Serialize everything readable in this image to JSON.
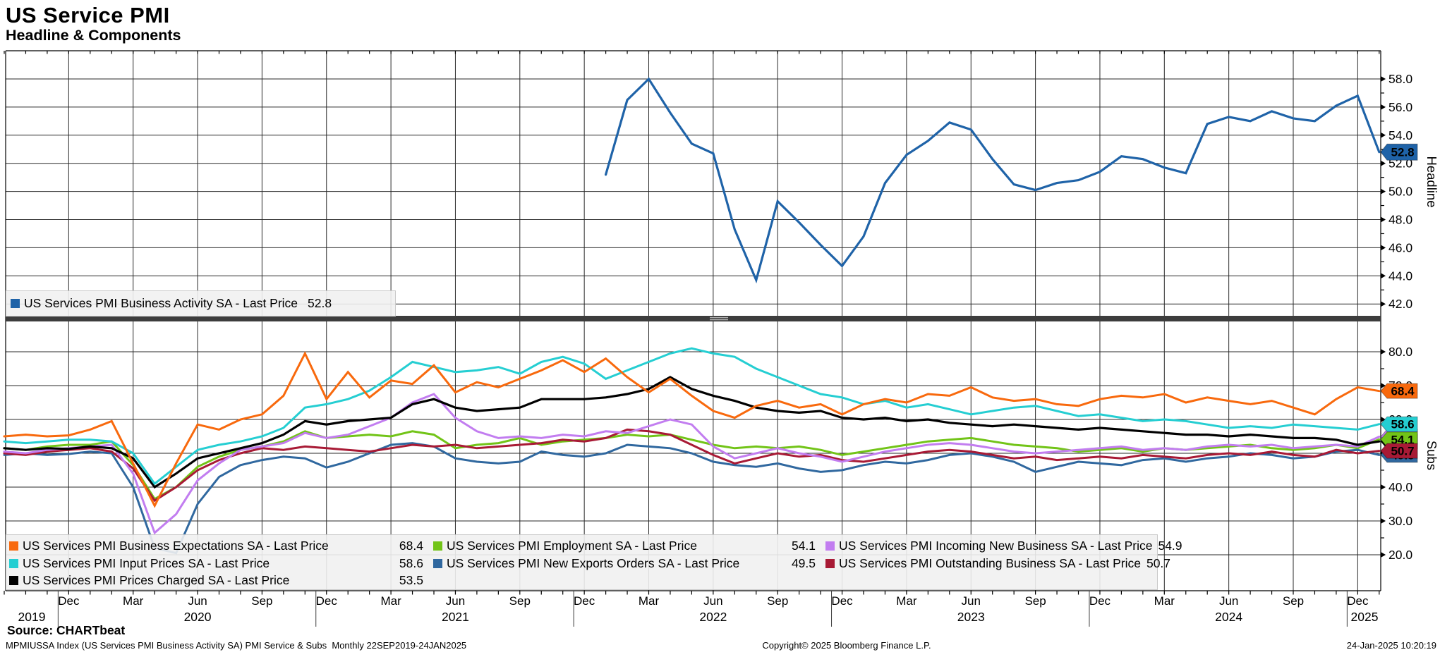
{
  "header": {
    "title": "US Service PMI",
    "subtitle": "Headline & Components"
  },
  "footer": {
    "source": "Source: CHARTbeat",
    "meta": "MPMIUSSA Index (US Services PMI Business Activity SA) PMI Service & Subs  Monthly 22SEP2019-24JAN2025",
    "copyright": "Copyright© 2025 Bloomberg Finance L.P.",
    "timestamp": "24-Jan-2025 10:20:19"
  },
  "legend_top": [
    {
      "series": "business_activity",
      "label": "US Services PMI Business Activity SA - Last Price",
      "value": "52.8",
      "color": "#1f63a8"
    }
  ],
  "legend_bottom": {
    "columns": [
      [
        {
          "series": "business_expectations",
          "label": "US Services PMI Business Expectations SA - Last Price",
          "value": "68.4",
          "color": "#f8690d"
        },
        {
          "series": "input_prices",
          "label": "US Services PMI Input Prices SA - Last Price",
          "value": "58.6",
          "color": "#25ced2"
        },
        {
          "series": "prices_charged",
          "label": "US Services PMI Prices Charged SA - Last Price",
          "value": "53.5",
          "color": "#000000"
        }
      ],
      [
        {
          "series": "employment",
          "label": "US Services PMI Employment SA - Last Price",
          "value": "54.1",
          "color": "#72c418"
        },
        {
          "series": "new_exports_orders",
          "label": "US Services PMI New Exports Orders SA - Last Price",
          "value": "49.5",
          "color": "#30689f"
        }
      ],
      [
        {
          "series": "incoming_new_business",
          "label": "US Services PMI Incoming New Business SA - Last Price",
          "value": "54.9",
          "color": "#c27df0"
        },
        {
          "series": "outstanding_business",
          "label": "US Services PMI Outstanding Business SA - Last Price",
          "value": "50.7",
          "color": "#a81a35"
        }
      ]
    ]
  },
  "x_axis": {
    "tick_labels": [
      "Dec",
      "Mar",
      "Jun",
      "Sep",
      "Dec",
      "Mar",
      "Jun",
      "Sep",
      "Dec",
      "Mar",
      "Jun",
      "Sep",
      "Dec",
      "Mar",
      "Jun",
      "Sep",
      "Dec",
      "Mar",
      "Jun",
      "Sep",
      "Dec"
    ],
    "tick_month_indices": [
      3,
      6,
      9,
      12,
      15,
      18,
      21,
      24,
      27,
      30,
      33,
      36,
      39,
      42,
      45,
      48,
      51,
      54,
      57,
      60,
      63
    ],
    "year_labels": [
      "2019",
      "2020",
      "2021",
      "2022",
      "2023",
      "2024",
      "2025"
    ]
  },
  "chart_data": {
    "type": "line",
    "title": "US Service PMI",
    "subtitle": "Headline & Components",
    "frequency": "Monthly",
    "x_range": "22SEP2019-24JAN2025",
    "x_months": [
      "2019-09",
      "2019-10",
      "2019-11",
      "2019-12",
      "2020-01",
      "2020-02",
      "2020-03",
      "2020-04",
      "2020-05",
      "2020-06",
      "2020-07",
      "2020-08",
      "2020-09",
      "2020-10",
      "2020-11",
      "2020-12",
      "2021-01",
      "2021-02",
      "2021-03",
      "2021-04",
      "2021-05",
      "2021-06",
      "2021-07",
      "2021-08",
      "2021-09",
      "2021-10",
      "2021-11",
      "2021-12",
      "2022-01",
      "2022-02",
      "2022-03",
      "2022-04",
      "2022-05",
      "2022-06",
      "2022-07",
      "2022-08",
      "2022-09",
      "2022-10",
      "2022-11",
      "2022-12",
      "2023-01",
      "2023-02",
      "2023-03",
      "2023-04",
      "2023-05",
      "2023-06",
      "2023-07",
      "2023-08",
      "2023-09",
      "2023-10",
      "2023-11",
      "2023-12",
      "2024-01",
      "2024-02",
      "2024-03",
      "2024-04",
      "2024-05",
      "2024-06",
      "2024-07",
      "2024-08",
      "2024-09",
      "2024-10",
      "2024-11",
      "2024-12",
      "2025-01"
    ],
    "panels": [
      {
        "name": "Headline",
        "axis_title": "Headline",
        "yticks": [
          "58.0",
          "56.0",
          "54.0",
          "52.0",
          "50.0",
          "48.0",
          "46.0",
          "44.0",
          "42.0"
        ],
        "series": [
          {
            "id": "business_activity",
            "name": "US Services PMI Business Activity SA",
            "color": "#1f63a8",
            "last_price": "52.8",
            "width": 3.2,
            "values": [
              null,
              null,
              null,
              null,
              null,
              null,
              null,
              null,
              null,
              null,
              null,
              null,
              null,
              null,
              null,
              null,
              null,
              null,
              null,
              null,
              null,
              null,
              null,
              null,
              null,
              null,
              null,
              null,
              51.2,
              56.5,
              58.0,
              55.6,
              53.4,
              52.7,
              47.3,
              43.7,
              49.3,
              47.8,
              46.2,
              44.7,
              46.8,
              50.6,
              52.6,
              53.6,
              54.9,
              54.4,
              52.3,
              50.5,
              50.1,
              50.6,
              50.8,
              51.4,
              52.5,
              52.3,
              51.7,
              51.3,
              54.8,
              55.3,
              55.0,
              55.7,
              55.2,
              55.0,
              56.1,
              56.8,
              52.8
            ]
          }
        ]
      },
      {
        "name": "Subs",
        "axis_title": "Subs",
        "yticks": [
          "80.0",
          "70.0",
          "60.0",
          "50.0",
          "40.0",
          "30.0",
          "20.0"
        ],
        "series": [
          {
            "id": "employment",
            "name": "US Services PMI Employment SA",
            "color": "#72c418",
            "last_price": "54.1",
            "width": 3,
            "values": [
              51.5,
              51.0,
              52.0,
              52.5,
              52.5,
              53.5,
              46.5,
              36.5,
              40.0,
              46.0,
              49.0,
              51.0,
              52.0,
              53.5,
              56.5,
              54.5,
              55.0,
              55.5,
              55.0,
              56.5,
              55.5,
              51.5,
              52.5,
              53.0,
              54.5,
              52.5,
              53.5,
              54.0,
              54.5,
              55.5,
              55.0,
              55.5,
              54.0,
              52.5,
              51.5,
              52.0,
              51.5,
              52.0,
              51.0,
              49.5,
              50.5,
              51.5,
              52.5,
              53.5,
              54.0,
              54.5,
              53.5,
              52.5,
              52.0,
              51.5,
              50.5,
              51.0,
              51.5,
              50.5,
              51.5,
              51.0,
              51.5,
              52.0,
              52.5,
              51.5,
              51.0,
              51.5,
              52.5,
              51.5,
              54.1
            ]
          },
          {
            "id": "new_exports_orders",
            "name": "US Services PMI New Exports Orders SA",
            "color": "#30689f",
            "last_price": "49.5",
            "width": 3,
            "values": [
              49.5,
              50.0,
              49.5,
              49.8,
              50.5,
              50.0,
              40.0,
              22.0,
              20.5,
              35.0,
              43.0,
              46.5,
              48.0,
              49.0,
              48.5,
              45.8,
              47.5,
              50.0,
              52.5,
              53.0,
              52.0,
              48.5,
              47.5,
              47.0,
              47.5,
              50.5,
              49.5,
              49.0,
              50.0,
              52.5,
              52.0,
              51.5,
              50.0,
              47.5,
              46.5,
              46.0,
              47.0,
              45.5,
              44.5,
              45.0,
              46.5,
              47.5,
              47.0,
              48.0,
              49.5,
              50.0,
              49.0,
              47.5,
              44.5,
              46.0,
              47.5,
              47.0,
              46.5,
              48.0,
              48.5,
              47.5,
              48.5,
              49.0,
              50.0,
              49.5,
              48.5,
              49.0,
              50.5,
              51.0,
              49.5
            ]
          },
          {
            "id": "outstanding_business",
            "name": "US Services PMI Outstanding Business SA",
            "color": "#a81a35",
            "last_price": "50.7",
            "width": 3,
            "values": [
              50.0,
              49.5,
              50.5,
              51.0,
              51.5,
              50.5,
              45.5,
              36.0,
              40.0,
              45.0,
              48.0,
              50.0,
              51.5,
              51.0,
              52.0,
              51.5,
              51.0,
              50.5,
              51.5,
              52.5,
              52.0,
              52.5,
              51.5,
              52.0,
              52.5,
              53.0,
              54.0,
              53.5,
              54.5,
              57.0,
              56.5,
              55.5,
              52.5,
              49.5,
              47.0,
              48.5,
              50.0,
              49.0,
              49.5,
              48.0,
              47.5,
              48.5,
              49.5,
              50.5,
              51.0,
              50.5,
              49.5,
              48.5,
              49.0,
              48.0,
              48.5,
              49.0,
              48.5,
              49.5,
              49.0,
              48.5,
              49.5,
              50.0,
              49.5,
              50.5,
              49.5,
              49.0,
              51.0,
              50.0,
              50.7
            ]
          },
          {
            "id": "incoming_new_business",
            "name": "US Services PMI Incoming New Business SA",
            "color": "#c27df0",
            "last_price": "54.9",
            "width": 3,
            "values": [
              50.5,
              50.0,
              51.0,
              51.5,
              52.0,
              52.5,
              44.0,
              26.5,
              32.0,
              42.0,
              47.0,
              51.0,
              52.0,
              53.0,
              56.0,
              54.5,
              55.5,
              58.0,
              60.5,
              65.0,
              67.5,
              60.5,
              56.5,
              54.5,
              55.0,
              54.5,
              55.5,
              55.0,
              56.5,
              56.0,
              58.0,
              60.0,
              58.5,
              52.0,
              48.5,
              50.0,
              51.5,
              50.0,
              49.0,
              47.5,
              49.0,
              50.5,
              51.5,
              52.5,
              53.0,
              52.5,
              51.5,
              50.5,
              50.0,
              50.5,
              51.0,
              51.5,
              52.0,
              51.0,
              51.5,
              51.0,
              52.0,
              52.5,
              52.0,
              52.5,
              51.5,
              52.0,
              52.5,
              52.0,
              54.9
            ]
          },
          {
            "id": "prices_charged",
            "name": "US Services PMI Prices Charged SA",
            "color": "#000000",
            "last_price": "53.5",
            "width": 3.2,
            "values": [
              51.5,
              51.0,
              51.5,
              51.3,
              52.0,
              51.5,
              48.5,
              40.0,
              44.0,
              48.5,
              50.0,
              51.5,
              53.0,
              55.5,
              59.5,
              58.5,
              59.5,
              60.0,
              60.5,
              64.5,
              66.0,
              63.5,
              62.5,
              63.0,
              63.5,
              66.0,
              66.0,
              66.0,
              66.5,
              67.5,
              69.0,
              72.5,
              69.0,
              67.0,
              65.5,
              63.5,
              62.5,
              62.0,
              62.5,
              60.5,
              60.0,
              60.5,
              59.5,
              60.0,
              59.0,
              58.5,
              58.0,
              58.5,
              58.0,
              57.5,
              57.0,
              57.5,
              57.0,
              56.5,
              56.0,
              55.5,
              55.5,
              55.0,
              55.5,
              55.0,
              54.5,
              54.5,
              54.0,
              52.5,
              53.5
            ]
          },
          {
            "id": "input_prices",
            "name": "US Services PMI Input Prices SA",
            "color": "#25ced2",
            "last_price": "58.6",
            "width": 3,
            "values": [
              53.5,
              53.0,
              53.5,
              54.0,
              54.0,
              53.5,
              50.0,
              41.0,
              46.0,
              51.0,
              52.5,
              53.5,
              55.0,
              57.5,
              63.5,
              64.5,
              66.0,
              68.5,
              72.5,
              77.0,
              75.5,
              74.0,
              74.5,
              75.5,
              73.5,
              77.0,
              78.5,
              76.5,
              72.0,
              74.5,
              77.0,
              79.5,
              81.0,
              79.5,
              78.5,
              75.0,
              72.5,
              70.0,
              67.5,
              66.5,
              64.5,
              65.5,
              63.5,
              64.5,
              63.0,
              61.5,
              62.5,
              63.5,
              64.0,
              62.5,
              61.0,
              61.5,
              60.5,
              59.5,
              60.0,
              59.5,
              58.5,
              57.5,
              58.0,
              57.5,
              58.5,
              58.0,
              57.5,
              57.0,
              58.6
            ]
          },
          {
            "id": "business_expectations",
            "name": "US Services PMI Business Expectations SA",
            "color": "#f8690d",
            "last_price": "68.4",
            "width": 3,
            "values": [
              55.0,
              55.5,
              55.0,
              55.3,
              57.0,
              59.5,
              47.0,
              34.5,
              47.0,
              58.5,
              57.0,
              60.0,
              61.5,
              67.0,
              79.5,
              66.0,
              74.0,
              66.5,
              71.5,
              70.5,
              76.0,
              68.0,
              71.0,
              69.5,
              72.0,
              74.5,
              77.5,
              74.0,
              78.0,
              72.5,
              68.0,
              72.0,
              67.0,
              62.5,
              60.5,
              64.0,
              65.5,
              63.5,
              64.5,
              61.5,
              64.5,
              66.0,
              65.0,
              67.5,
              67.0,
              69.5,
              66.5,
              65.5,
              66.0,
              64.5,
              64.0,
              66.0,
              67.0,
              66.5,
              67.5,
              65.0,
              66.5,
              65.5,
              64.5,
              65.5,
              63.5,
              61.5,
              66.0,
              69.5,
              68.4
            ]
          }
        ]
      }
    ]
  }
}
